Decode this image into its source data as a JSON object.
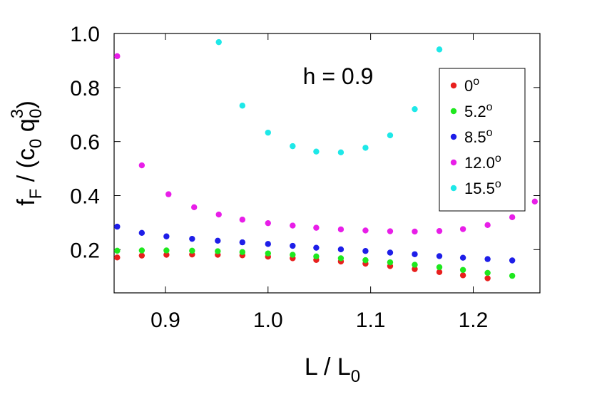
{
  "chart_data": {
    "type": "scatter",
    "xlabel": {
      "main": "L / L",
      "sub": "0"
    },
    "ylabel": {
      "main": "f",
      "sub1": "F",
      "mid": " / (c",
      "sub2": "0",
      "mid2": " q",
      "sup": "3",
      "sub3": "0",
      "end": ")"
    },
    "annotation": "h = 0.9",
    "xlim": [
      0.85,
      1.265
    ],
    "ylim": [
      0.04,
      1.0
    ],
    "xticks": [
      0.9,
      1.0,
      1.1,
      1.2
    ],
    "xtick_labels": [
      "0.9",
      "1.0",
      "1.1",
      "1.2"
    ],
    "yticks": [
      0.2,
      0.4,
      0.6,
      0.8,
      1.0
    ],
    "ytick_labels": [
      "0.2",
      "0.4",
      "0.6",
      "0.8",
      "1.0"
    ],
    "legend_position": "top-right",
    "series": [
      {
        "name": "0",
        "sup": "o",
        "color": "#e8201e",
        "points": [
          [
            0.853,
            0.171
          ],
          [
            0.877,
            0.178
          ],
          [
            0.901,
            0.181
          ],
          [
            0.926,
            0.182
          ],
          [
            0.951,
            0.181
          ],
          [
            0.975,
            0.179
          ],
          [
            1.0,
            0.174
          ],
          [
            1.024,
            0.168
          ],
          [
            1.047,
            0.162
          ],
          [
            1.071,
            0.156
          ],
          [
            1.095,
            0.148
          ],
          [
            1.119,
            0.139
          ],
          [
            1.143,
            0.128
          ],
          [
            1.167,
            0.117
          ],
          [
            1.19,
            0.105
          ],
          [
            1.214,
            0.094
          ]
        ]
      },
      {
        "name": "5.2",
        "sup": "o",
        "color": "#1ee81e",
        "points": [
          [
            0.853,
            0.196
          ],
          [
            0.877,
            0.197
          ],
          [
            0.901,
            0.197
          ],
          [
            0.926,
            0.196
          ],
          [
            0.951,
            0.194
          ],
          [
            0.975,
            0.191
          ],
          [
            1.0,
            0.186
          ],
          [
            1.024,
            0.181
          ],
          [
            1.047,
            0.175
          ],
          [
            1.071,
            0.168
          ],
          [
            1.095,
            0.161
          ],
          [
            1.119,
            0.153
          ],
          [
            1.143,
            0.144
          ],
          [
            1.167,
            0.135
          ],
          [
            1.19,
            0.125
          ],
          [
            1.214,
            0.114
          ],
          [
            1.238,
            0.103
          ]
        ]
      },
      {
        "name": "8.5",
        "sup": "o",
        "color": "#1e1ee8",
        "points": [
          [
            0.853,
            0.285
          ],
          [
            0.877,
            0.262
          ],
          [
            0.901,
            0.249
          ],
          [
            0.926,
            0.24
          ],
          [
            0.951,
            0.233
          ],
          [
            0.975,
            0.227
          ],
          [
            1.0,
            0.221
          ],
          [
            1.024,
            0.214
          ],
          [
            1.047,
            0.207
          ],
          [
            1.071,
            0.201
          ],
          [
            1.095,
            0.195
          ],
          [
            1.119,
            0.189
          ],
          [
            1.143,
            0.183
          ],
          [
            1.167,
            0.176
          ],
          [
            1.19,
            0.17
          ],
          [
            1.214,
            0.165
          ],
          [
            1.238,
            0.16
          ]
        ]
      },
      {
        "name": "12.0",
        "sup": "o",
        "color": "#e81ee8",
        "points": [
          [
            0.853,
            0.916
          ],
          [
            0.877,
            0.512
          ],
          [
            0.903,
            0.405
          ],
          [
            0.928,
            0.357
          ],
          [
            0.952,
            0.33
          ],
          [
            0.975,
            0.311
          ],
          [
            1.0,
            0.298
          ],
          [
            1.024,
            0.289
          ],
          [
            1.047,
            0.281
          ],
          [
            1.071,
            0.275
          ],
          [
            1.095,
            0.271
          ],
          [
            1.119,
            0.268
          ],
          [
            1.143,
            0.267
          ],
          [
            1.167,
            0.269
          ],
          [
            1.19,
            0.276
          ],
          [
            1.214,
            0.291
          ],
          [
            1.238,
            0.32
          ],
          [
            1.26,
            0.378
          ]
        ]
      },
      {
        "name": "15.5",
        "sup": "o",
        "color": "#1ee8e8",
        "points": [
          [
            0.952,
            0.968
          ],
          [
            0.975,
            0.733
          ],
          [
            1.0,
            0.633
          ],
          [
            1.024,
            0.583
          ],
          [
            1.047,
            0.563
          ],
          [
            1.071,
            0.56
          ],
          [
            1.095,
            0.577
          ],
          [
            1.119,
            0.623
          ],
          [
            1.143,
            0.72
          ],
          [
            1.167,
            0.941
          ]
        ]
      }
    ]
  }
}
